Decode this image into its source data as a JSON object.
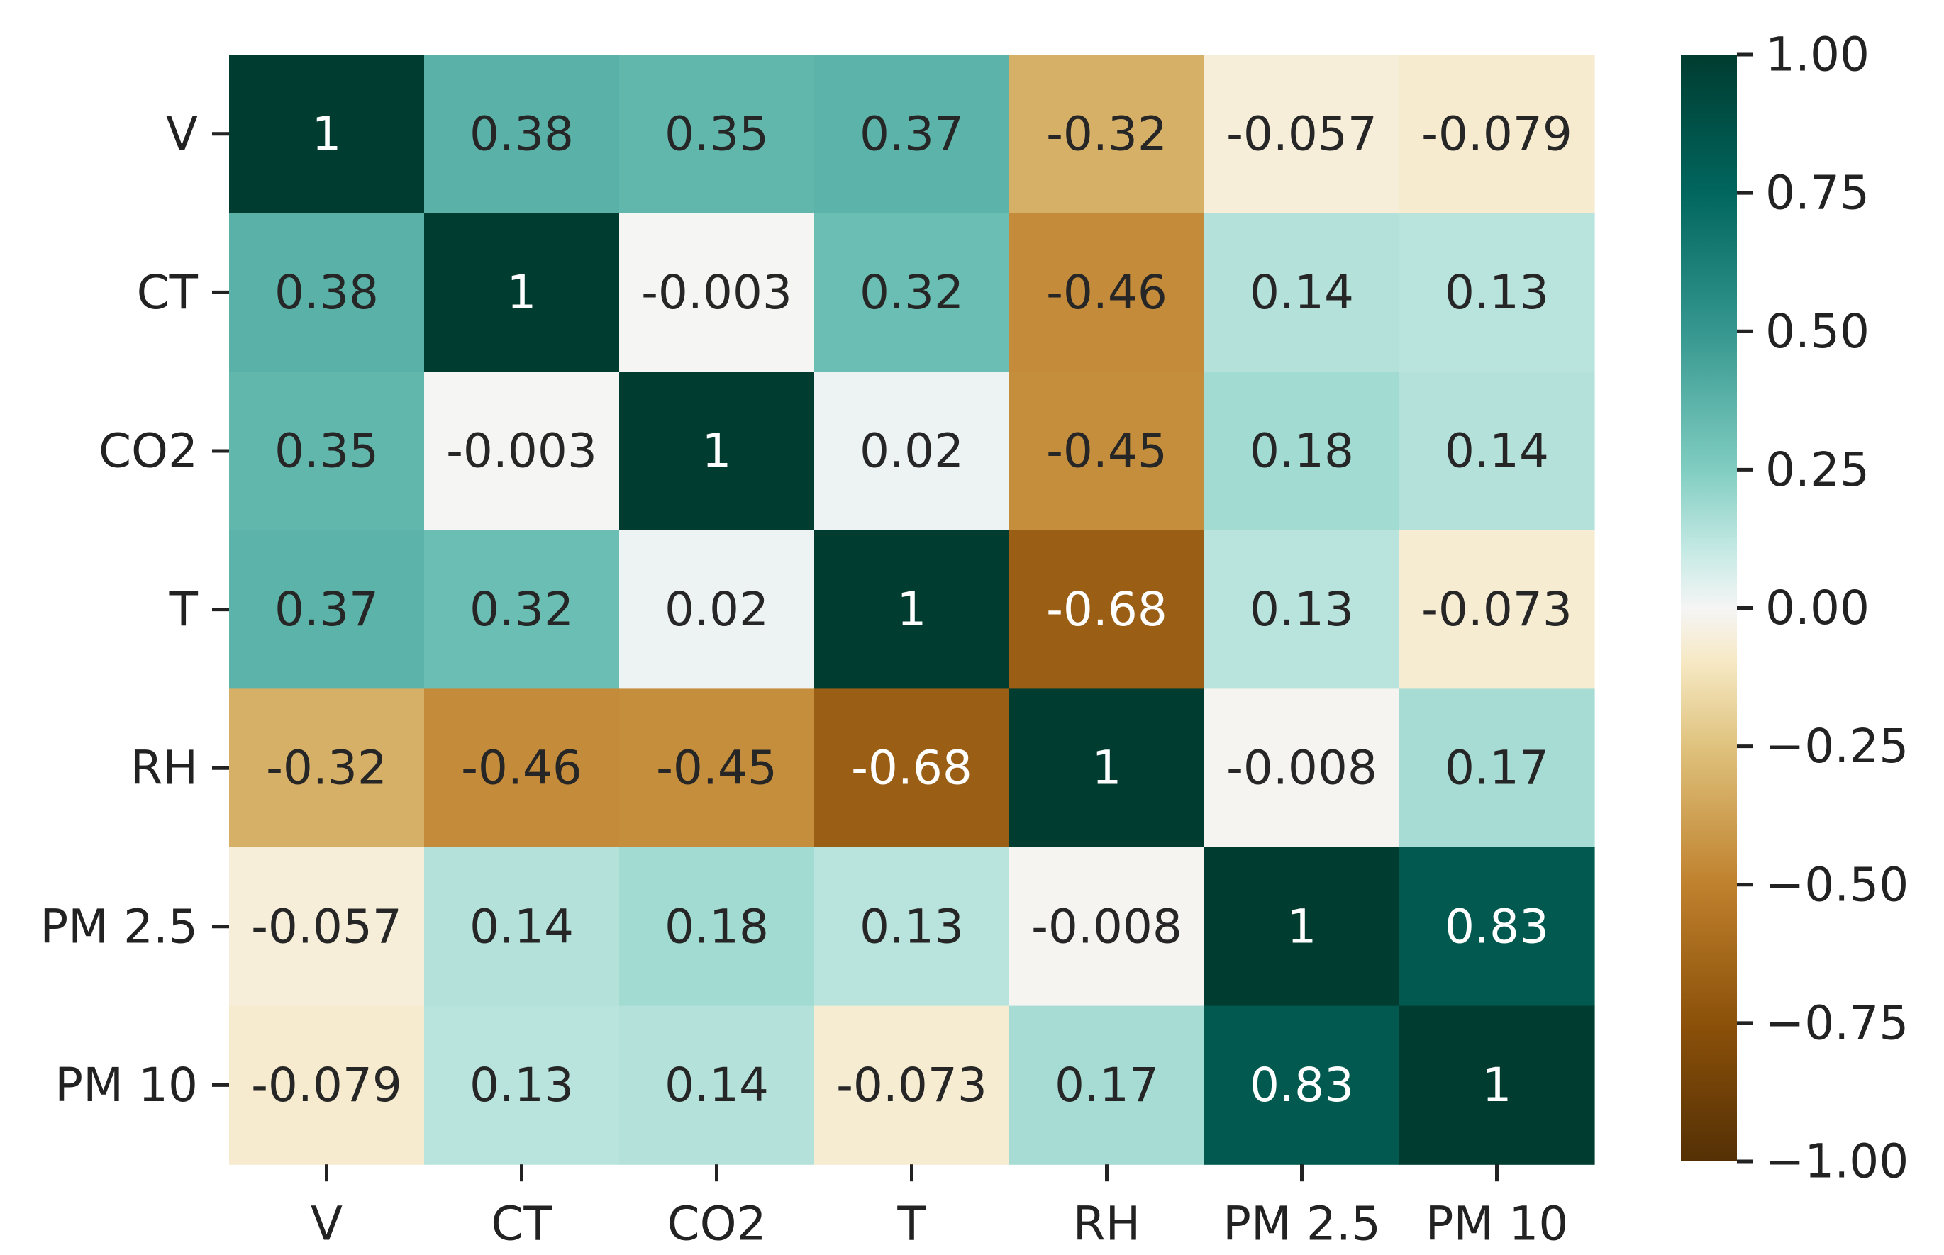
{
  "chart_data": {
    "type": "heatmap",
    "title": "",
    "xlabel": "",
    "ylabel": "",
    "x_categories": [
      "V",
      "CT",
      "CO2",
      "T",
      "RH",
      "PM 2.5",
      "PM 10"
    ],
    "y_categories": [
      "V",
      "CT",
      "CO2",
      "T",
      "RH",
      "PM 2.5",
      "PM 10"
    ],
    "values": [
      [
        1,
        0.38,
        0.35,
        0.37,
        -0.32,
        -0.057,
        -0.079
      ],
      [
        0.38,
        1,
        -0.003,
        0.32,
        -0.46,
        0.14,
        0.13
      ],
      [
        0.35,
        -0.003,
        1,
        0.02,
        -0.45,
        0.18,
        0.14
      ],
      [
        0.37,
        0.32,
        0.02,
        1,
        -0.68,
        0.13,
        -0.073
      ],
      [
        -0.32,
        -0.46,
        -0.45,
        -0.68,
        1,
        -0.008,
        0.17
      ],
      [
        -0.057,
        0.14,
        0.18,
        0.13,
        -0.008,
        1,
        0.83
      ],
      [
        -0.079,
        0.13,
        0.14,
        -0.073,
        0.17,
        0.83,
        1
      ]
    ],
    "annotations": [
      [
        "1",
        "0.38",
        "0.35",
        "0.37",
        "-0.32",
        "-0.057",
        "-0.079"
      ],
      [
        "0.38",
        "1",
        "-0.003",
        "0.32",
        "-0.46",
        "0.14",
        "0.13"
      ],
      [
        "0.35",
        "-0.003",
        "1",
        "0.02",
        "-0.45",
        "0.18",
        "0.14"
      ],
      [
        "0.37",
        "0.32",
        "0.02",
        "1",
        "-0.68",
        "0.13",
        "-0.073"
      ],
      [
        "-0.32",
        "-0.46",
        "-0.45",
        "-0.68",
        "1",
        "-0.008",
        "0.17"
      ],
      [
        "-0.057",
        "0.14",
        "0.18",
        "0.13",
        "-0.008",
        "1",
        "0.83"
      ],
      [
        "-0.079",
        "0.13",
        "0.14",
        "-0.073",
        "0.17",
        "0.83",
        "1"
      ]
    ],
    "colormap": "BrBG",
    "vmin": -1,
    "vmax": 1,
    "colorbar": {
      "ticks": [
        1.0,
        0.75,
        0.5,
        0.25,
        0.0,
        -0.25,
        -0.5,
        -0.75,
        -1.0
      ],
      "tick_labels": [
        "1.00",
        "0.75",
        "0.50",
        "0.25",
        "0.00",
        "−0.25",
        "−0.50",
        "−0.75",
        "−1.00"
      ],
      "placement": "right"
    },
    "colormap_stops": [
      [
        -1.0,
        "#543005"
      ],
      [
        -0.75,
        "#8c510a"
      ],
      [
        -0.5,
        "#bf812d"
      ],
      [
        -0.25,
        "#dfc27d"
      ],
      [
        -0.1,
        "#f6e8c3"
      ],
      [
        0.0,
        "#f5f5f5"
      ],
      [
        0.1,
        "#c7eae5"
      ],
      [
        0.25,
        "#80cdc1"
      ],
      [
        0.5,
        "#35978f"
      ],
      [
        0.75,
        "#01665e"
      ],
      [
        1.0,
        "#003c30"
      ]
    ]
  }
}
